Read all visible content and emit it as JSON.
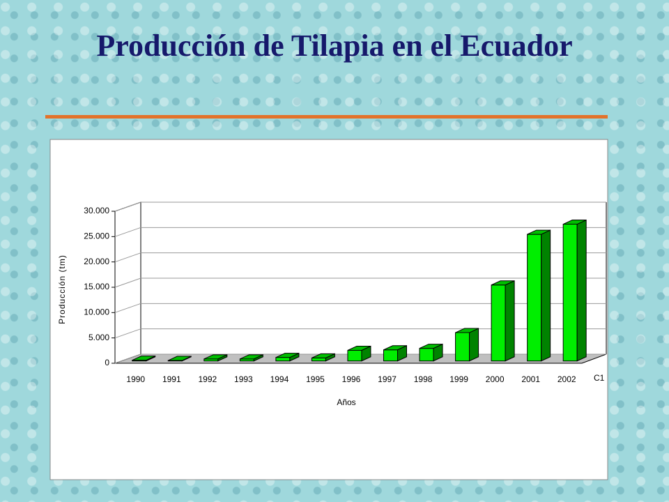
{
  "chart_data": {
    "type": "bar",
    "title": "Producción de Tilapia en el Ecuador",
    "x_label": "Años",
    "y_label": "Producción (tm)",
    "depth_label": "C1",
    "categories": [
      "1990",
      "1991",
      "1992",
      "1993",
      "1994",
      "1995",
      "1996",
      "1997",
      "1998",
      "1999",
      "2000",
      "2001",
      "2002"
    ],
    "values": [
      150,
      100,
      400,
      400,
      700,
      600,
      2100,
      2200,
      2500,
      5600,
      15000,
      25000,
      27000
    ],
    "color": "#00ee00",
    "ylim": [
      0,
      30000
    ],
    "yticks": [
      {
        "value": 0,
        "label": "0"
      },
      {
        "value": 5000,
        "label": "5.000"
      },
      {
        "value": 10000,
        "label": "10.000"
      },
      {
        "value": 15000,
        "label": "15.000"
      },
      {
        "value": 20000,
        "label": "20.000"
      },
      {
        "value": 25000,
        "label": "25.000"
      },
      {
        "value": 30000,
        "label": "30.000"
      }
    ],
    "grid": true
  }
}
